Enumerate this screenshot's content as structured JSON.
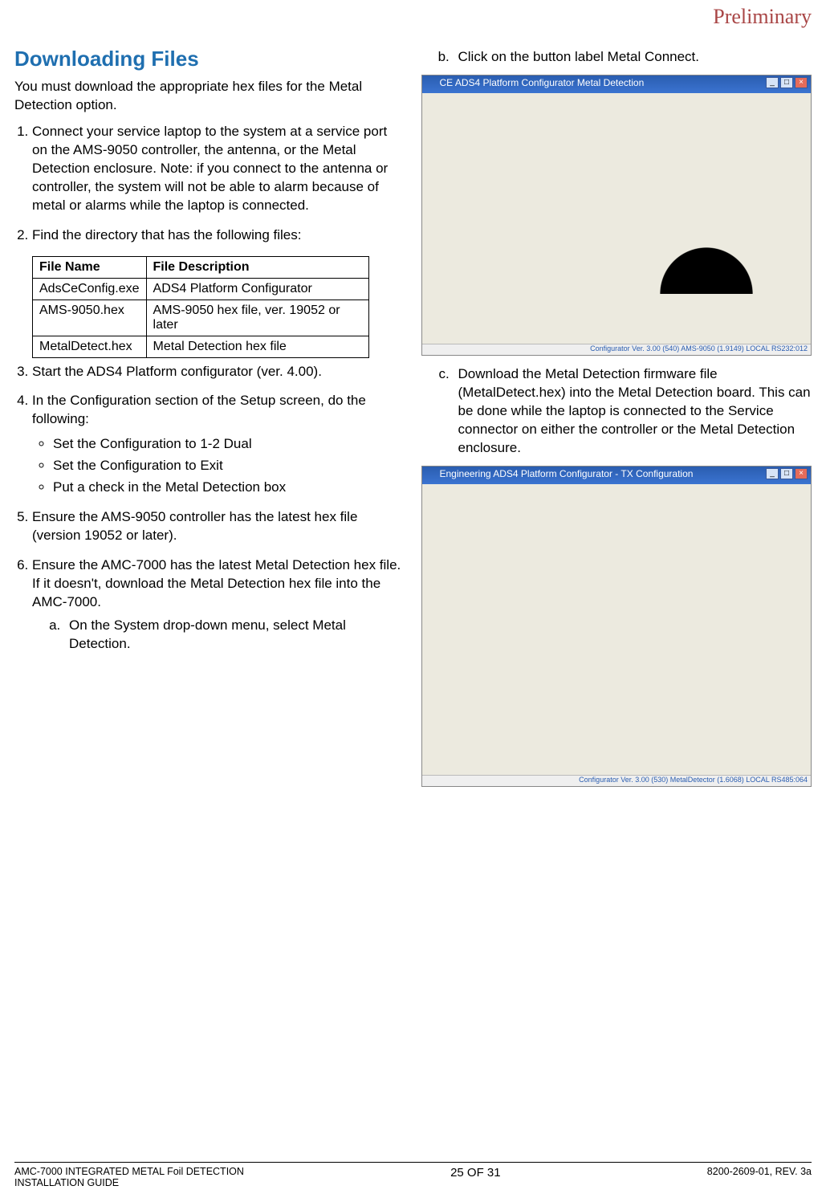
{
  "watermark": "Preliminary",
  "heading": "Downloading Files",
  "intro": "You must download the appropriate hex files for the Metal Detection option.",
  "steps": {
    "s1": "Connect your service laptop to the system at a service port on the AMS-9050 controller, the antenna, or the Metal Detection enclosure. Note: if you connect to the antenna or controller, the system will not be able to alarm because of metal or alarms while the laptop is connected.",
    "s2": "Find the directory that has the following files:",
    "s3": "Start the ADS4 Platform configurator (ver. 4.00).",
    "s4": "In the Configuration section of the Setup screen, do the following:",
    "s5": "Ensure the AMS-9050 controller has the latest hex file (version 19052 or later).",
    "s6": "Ensure the AMC-7000 has the latest Metal Detection hex file. If it doesn't, download the Metal Detection hex file into the AMC-7000.",
    "s6a": "On the System drop-down menu, select Metal Detection.",
    "s6b": "Click on the button label Metal Connect.",
    "s6c": "Download the Metal Detection firmware file (MetalDetect.hex) into the Metal Detection board. This can be done while the laptop is connected to the Service connector on either the controller or the Metal Detection enclosure."
  },
  "bullets": {
    "b1": "Set the Configuration to 1-2 Dual",
    "b2": "Set the Configuration to Exit",
    "b3": "Put a check in the Metal Detection box"
  },
  "table": {
    "h1": "File Name",
    "h2": "File Description",
    "rows": [
      {
        "c1": "AdsCeConfig.exe",
        "c2": "ADS4 Platform Configurator"
      },
      {
        "c1": "AMS-9050.hex",
        "c2": "AMS-9050 hex file, ver. 19052 or later"
      },
      {
        "c1": "MetalDetect.hex",
        "c2": "Metal Detection hex file"
      }
    ]
  },
  "screenshots": {
    "shot1_title": "CE ADS4 Platform Configurator Metal Detection",
    "shot1_status": "Configurator Ver. 3.00 (540)     AMS-9050 (1.9149)    LOCAL RS232:012",
    "shot2_title": "Engineering ADS4 Platform Configurator - TX Configuration",
    "shot2_status": "Configurator Ver. 3.00 (530)    MetalDetector (1.6068)   LOCAL RS485:064"
  },
  "footer": {
    "left": "AMC-7000 INTEGRATED METAL Foil DETECTION\nINSTALLATION GUIDE",
    "center": "25 OF 31",
    "right": "8200-2609-01, REV. 3a"
  },
  "colors": {
    "heading_color": "#1f6fb0",
    "watermark_color": "#a94646",
    "text_color": "#000000"
  }
}
